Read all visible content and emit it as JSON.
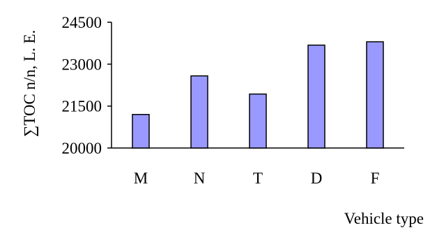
{
  "chart_data": {
    "type": "bar",
    "title": "",
    "xlabel": "Vehicle type",
    "ylabel": "∑TOC n/n, L. E.",
    "categories": [
      "M",
      "N",
      "T",
      "D",
      "F"
    ],
    "values": [
      21200,
      22580,
      21930,
      23680,
      23800
    ],
    "ylim": [
      20000,
      24500
    ],
    "yticks": [
      20000,
      21500,
      23000,
      24500
    ],
    "ytick_labels": [
      "20000",
      "21500",
      "23000",
      "24500"
    ],
    "grid": false,
    "legend": "none",
    "colors": {
      "bar_fill": "#9999ff",
      "bar_stroke": "#000000",
      "axis": "#000000"
    }
  }
}
